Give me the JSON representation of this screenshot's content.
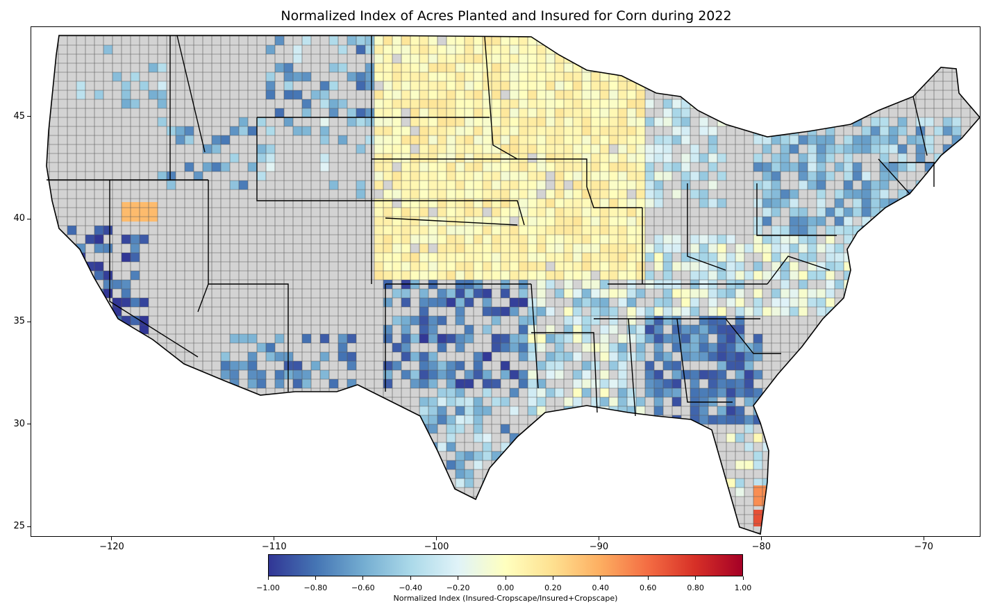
{
  "title": "Normalized Index of Acres Planted and Insured for Corn during 2022",
  "axes": {
    "x_ticks": [
      "−120",
      "−110",
      "−100",
      "−90",
      "−80",
      "−70"
    ],
    "x_values": [
      -120,
      -110,
      -100,
      -90,
      -80,
      -70
    ],
    "y_ticks": [
      "45",
      "40",
      "35",
      "30",
      "25"
    ],
    "y_values": [
      45,
      40,
      35,
      30,
      25
    ],
    "xlim": [
      -125,
      -66.5
    ],
    "ylim": [
      24.5,
      49.4
    ]
  },
  "colorbar": {
    "label": "Normalized Index (Insured-Cropscape/Insured+Cropscape)",
    "ticks": [
      "−1.00",
      "−0.80",
      "−0.60",
      "−0.40",
      "−0.20",
      "0.00",
      "0.20",
      "0.40",
      "0.60",
      "0.80",
      "1.00"
    ],
    "range": [
      -1,
      1
    ],
    "colormap": [
      "#313695",
      "#4575b4",
      "#74add1",
      "#abd9e9",
      "#e0f3f8",
      "#ffffbf",
      "#fee090",
      "#fdae61",
      "#f46d43",
      "#d73027",
      "#a50026"
    ]
  },
  "map_colors": {
    "no_data": "#d3d3d3",
    "state_border": "#000000",
    "county_border": "#555555"
  }
}
